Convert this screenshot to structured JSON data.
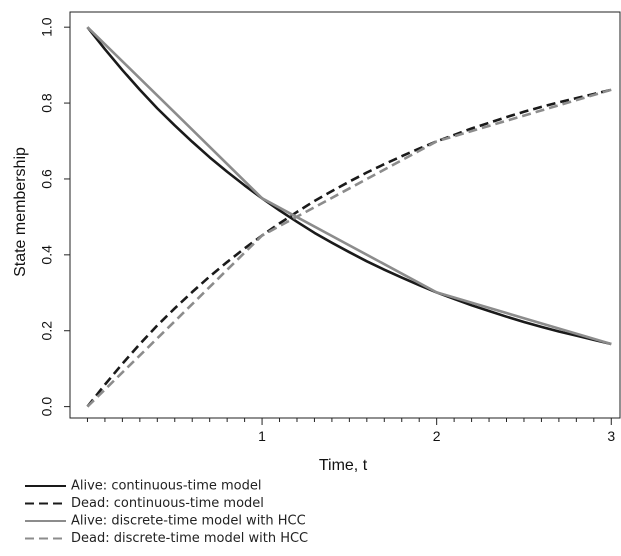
{
  "chart_data": {
    "type": "line",
    "title": "",
    "xlabel": "Time, t",
    "ylabel": "State membership",
    "xlim": [
      -0.1,
      3.05
    ],
    "ylim": [
      -0.03,
      1.04
    ],
    "x_ticks": [
      1,
      2,
      3
    ],
    "x_tick_labels": [
      "1",
      "2",
      "3"
    ],
    "x_minor_ticks": [
      0,
      0.1,
      0.2,
      0.3,
      0.4,
      0.5,
      0.6,
      0.7,
      0.8,
      0.9,
      1.1,
      1.2,
      1.3,
      1.4,
      1.5,
      1.6,
      1.7,
      1.8,
      1.9,
      2.1,
      2.2,
      2.3,
      2.4,
      2.5,
      2.6,
      2.7,
      2.8,
      2.9
    ],
    "y_ticks": [
      0.0,
      0.2,
      0.4,
      0.6,
      0.8,
      1.0
    ],
    "y_tick_labels": [
      "0.0",
      "0.2",
      "0.4",
      "0.6",
      "0.8",
      "1.0"
    ],
    "grid": false,
    "legend_position": "below",
    "series": [
      {
        "name": "Alive: continuous-time model",
        "color": "#1a1a1a",
        "dash": "solid",
        "x": [
          0,
          0.1,
          0.2,
          0.3,
          0.4,
          0.5,
          0.6,
          0.7,
          0.8,
          0.9,
          1.0,
          1.1,
          1.2,
          1.3,
          1.4,
          1.5,
          1.6,
          1.7,
          1.8,
          1.9,
          2.0,
          2.1,
          2.2,
          2.3,
          2.4,
          2.5,
          2.6,
          2.7,
          2.8,
          2.9,
          3.0
        ],
        "y": [
          1.0,
          0.942,
          0.887,
          0.835,
          0.786,
          0.741,
          0.698,
          0.657,
          0.619,
          0.583,
          0.549,
          0.517,
          0.487,
          0.458,
          0.432,
          0.407,
          0.383,
          0.361,
          0.34,
          0.32,
          0.301,
          0.284,
          0.267,
          0.252,
          0.237,
          0.223,
          0.21,
          0.198,
          0.187,
          0.176,
          0.165
        ]
      },
      {
        "name": "Dead: continuous-time model",
        "color": "#1a1a1a",
        "dash": "dashed",
        "x": [
          0,
          0.1,
          0.2,
          0.3,
          0.4,
          0.5,
          0.6,
          0.7,
          0.8,
          0.9,
          1.0,
          1.1,
          1.2,
          1.3,
          1.4,
          1.5,
          1.6,
          1.7,
          1.8,
          1.9,
          2.0,
          2.1,
          2.2,
          2.3,
          2.4,
          2.5,
          2.6,
          2.7,
          2.8,
          2.9,
          3.0
        ],
        "y": [
          0.0,
          0.058,
          0.113,
          0.165,
          0.214,
          0.259,
          0.302,
          0.343,
          0.381,
          0.417,
          0.451,
          0.483,
          0.513,
          0.542,
          0.568,
          0.593,
          0.617,
          0.639,
          0.66,
          0.68,
          0.699,
          0.716,
          0.733,
          0.748,
          0.763,
          0.777,
          0.79,
          0.802,
          0.813,
          0.824,
          0.835
        ]
      },
      {
        "name": "Alive: discrete-time model with HCC",
        "color": "#8c8c8c",
        "dash": "solid",
        "x": [
          0,
          0.5,
          1.0,
          1.5,
          2.0,
          2.5,
          3.0
        ],
        "y": [
          1.0,
          0.775,
          0.549,
          0.425,
          0.301,
          0.233,
          0.165
        ]
      },
      {
        "name": "Dead: discrete-time model with HCC",
        "color": "#8c8c8c",
        "dash": "dashed",
        "x": [
          0,
          0.5,
          1.0,
          1.5,
          2.0,
          2.5,
          3.0
        ],
        "y": [
          0.0,
          0.225,
          0.451,
          0.575,
          0.699,
          0.767,
          0.835
        ]
      }
    ]
  }
}
